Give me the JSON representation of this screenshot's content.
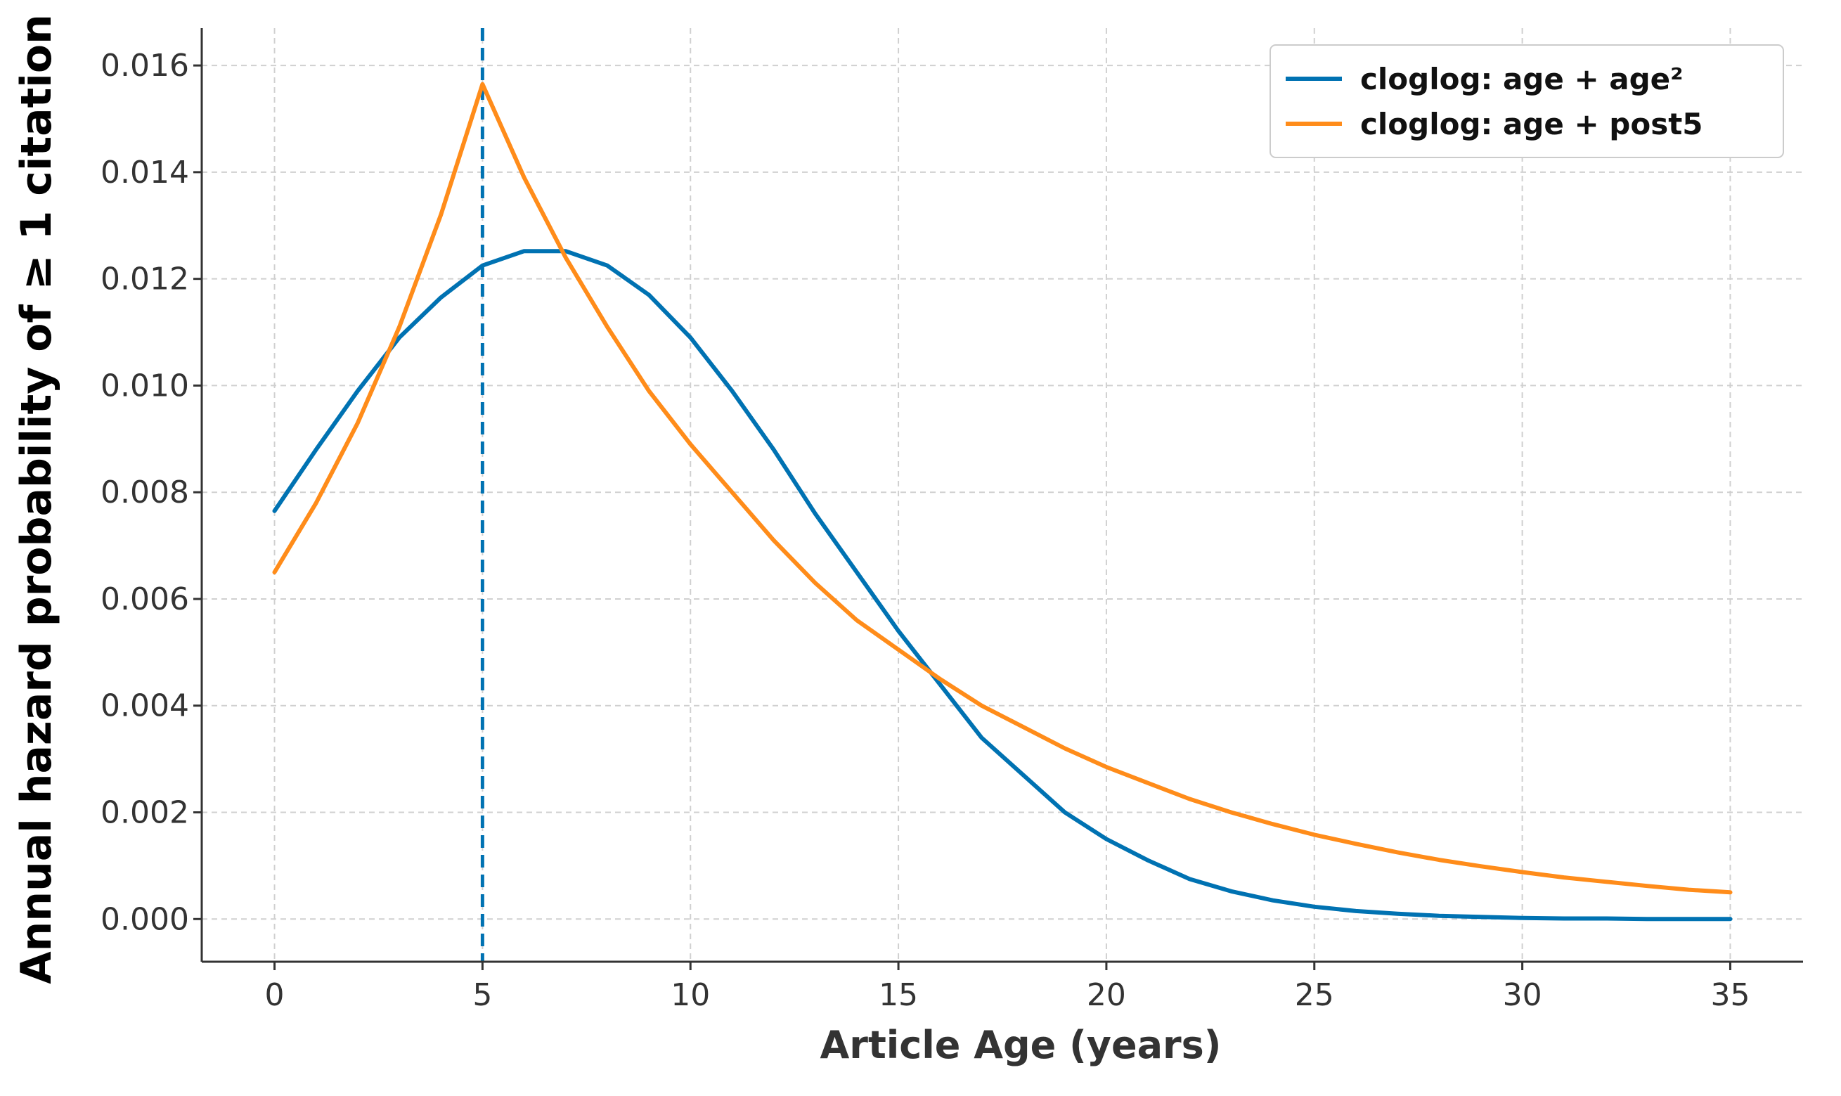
{
  "chart_data": {
    "type": "line",
    "title": "",
    "xlabel": "Article Age (years)",
    "ylabel": "Annual hazard probability of ≥ 1 citation",
    "xlim": [
      -1.75,
      36.75
    ],
    "ylim": [
      -0.0008,
      0.0167
    ],
    "xticks": [
      0,
      5,
      10,
      15,
      20,
      25,
      30,
      35
    ],
    "xtick_labels": [
      "0",
      "5",
      "10",
      "15",
      "20",
      "25",
      "30",
      "35"
    ],
    "yticks": [
      0.0,
      0.002,
      0.004,
      0.006,
      0.008,
      0.01,
      0.012,
      0.014,
      0.016
    ],
    "ytick_labels": [
      "0.000",
      "0.002",
      "0.004",
      "0.006",
      "0.008",
      "0.010",
      "0.012",
      "0.014",
      "0.016"
    ],
    "grid": true,
    "legend_position": "top-right",
    "x": [
      0,
      1,
      2,
      3,
      4,
      5,
      6,
      7,
      8,
      9,
      10,
      11,
      12,
      13,
      14,
      15,
      16,
      17,
      18,
      19,
      20,
      21,
      22,
      23,
      24,
      25,
      26,
      27,
      28,
      29,
      30,
      31,
      32,
      33,
      34,
      35
    ],
    "series": [
      {
        "name": "cloglog: age + age²",
        "color": "#0072B2",
        "values": [
          0.00765,
          0.0088,
          0.0099,
          0.0109,
          0.01165,
          0.01225,
          0.01252,
          0.01252,
          0.01225,
          0.0117,
          0.0109,
          0.0099,
          0.0088,
          0.0076,
          0.0065,
          0.0054,
          0.0044,
          0.0034,
          0.0027,
          0.002,
          0.0015,
          0.0011,
          0.00075,
          0.00052,
          0.00035,
          0.00023,
          0.00015,
          0.0001,
          6e-05,
          4e-05,
          2e-05,
          1e-05,
          1e-05,
          0.0,
          0.0,
          0.0
        ]
      },
      {
        "name": "cloglog: age + post5",
        "color": "#FF8C1A",
        "values": [
          0.0065,
          0.0078,
          0.0093,
          0.0111,
          0.0132,
          0.01565,
          0.0139,
          0.0124,
          0.0111,
          0.0099,
          0.0089,
          0.008,
          0.0071,
          0.0063,
          0.0056,
          0.00505,
          0.0045,
          0.004,
          0.0036,
          0.0032,
          0.00285,
          0.00255,
          0.00225,
          0.002,
          0.00178,
          0.00158,
          0.00141,
          0.00125,
          0.00111,
          0.00099,
          0.00088,
          0.00078,
          0.0007,
          0.00062,
          0.00055,
          0.0005
        ]
      }
    ],
    "vline": {
      "x": 5,
      "color": "#0072B2",
      "style": "dashed"
    },
    "axes_color": "#333333",
    "grid_color": "#d0d0d0"
  }
}
